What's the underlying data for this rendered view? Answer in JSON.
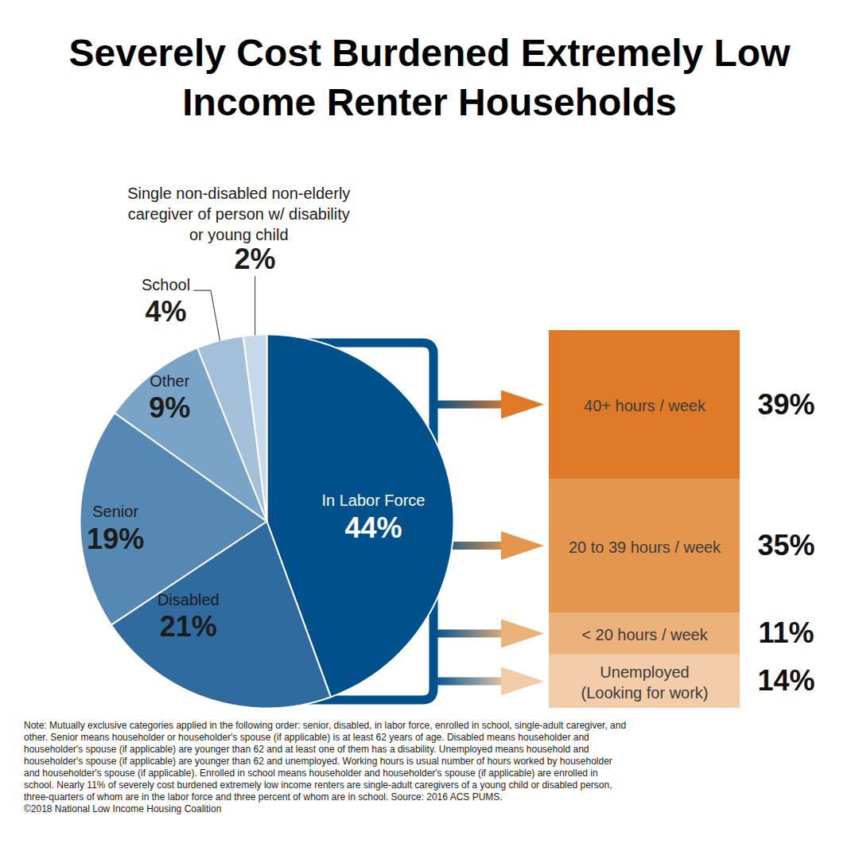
{
  "chart_data": [
    {
      "type": "pie",
      "title": "Severely Cost Burdened Extremely Low Income Renter Households",
      "categories": [
        "In Labor Force",
        "Disabled",
        "Senior",
        "Other",
        "School",
        "Single non-disabled non-elderly\ncaregiver of person w/ disability\nor young child"
      ],
      "values": [
        44,
        21,
        19,
        9,
        4,
        2
      ],
      "value_labels": [
        "44%",
        "21%",
        "19%",
        "9%",
        "4%",
        "2%"
      ],
      "colors": [
        "#00508b",
        "#2f6b9e",
        "#5688b4",
        "#7aa3c8",
        "#a3bfd9",
        "#c6d9ea"
      ],
      "data_labels": true
    },
    {
      "type": "bar",
      "stacked": true,
      "categories": [
        "40+ hours / week",
        "20 to 39 hours / week",
        "< 20 hours / week",
        "Unemployed\n(Looking for work)"
      ],
      "values": [
        39,
        35,
        11,
        14
      ],
      "value_labels": [
        "39%",
        "35%",
        "11%",
        "14%"
      ],
      "colors": [
        "#df7b28",
        "#e4964f",
        "#ebb27c",
        "#f3cdaa"
      ],
      "data_labels": true,
      "tick_labels": false
    }
  ],
  "note": "Note: Mutually exclusive categories applied in the following order: senior, disabled, in labor force, enrolled in school, single-adult caregiver, and other. Senior means householder or householder's spouse (if applicable) is at least 62 years of age. Disabled means householder and householder's spouse (if applicable) are younger than 62 and at least one of them has a disability. Unemployed means household and householder's spouse (if applicable) are younger than 62 and unemployed. Working hours is usual number of hours worked by householder and householder's spouse (if applicable). Enrolled in school means householder and householder's spouse (if applicable) are enrolled in school. Nearly 11% of severely cost burdened extremely low income renters are single-adult caregivers of a young child or disabled person, three-quarters of whom are in the labor force and three percent of whom are in school. Source: 2016 ACS PUMS.",
  "credit": "©2018 National Low Income Housing Coalition"
}
